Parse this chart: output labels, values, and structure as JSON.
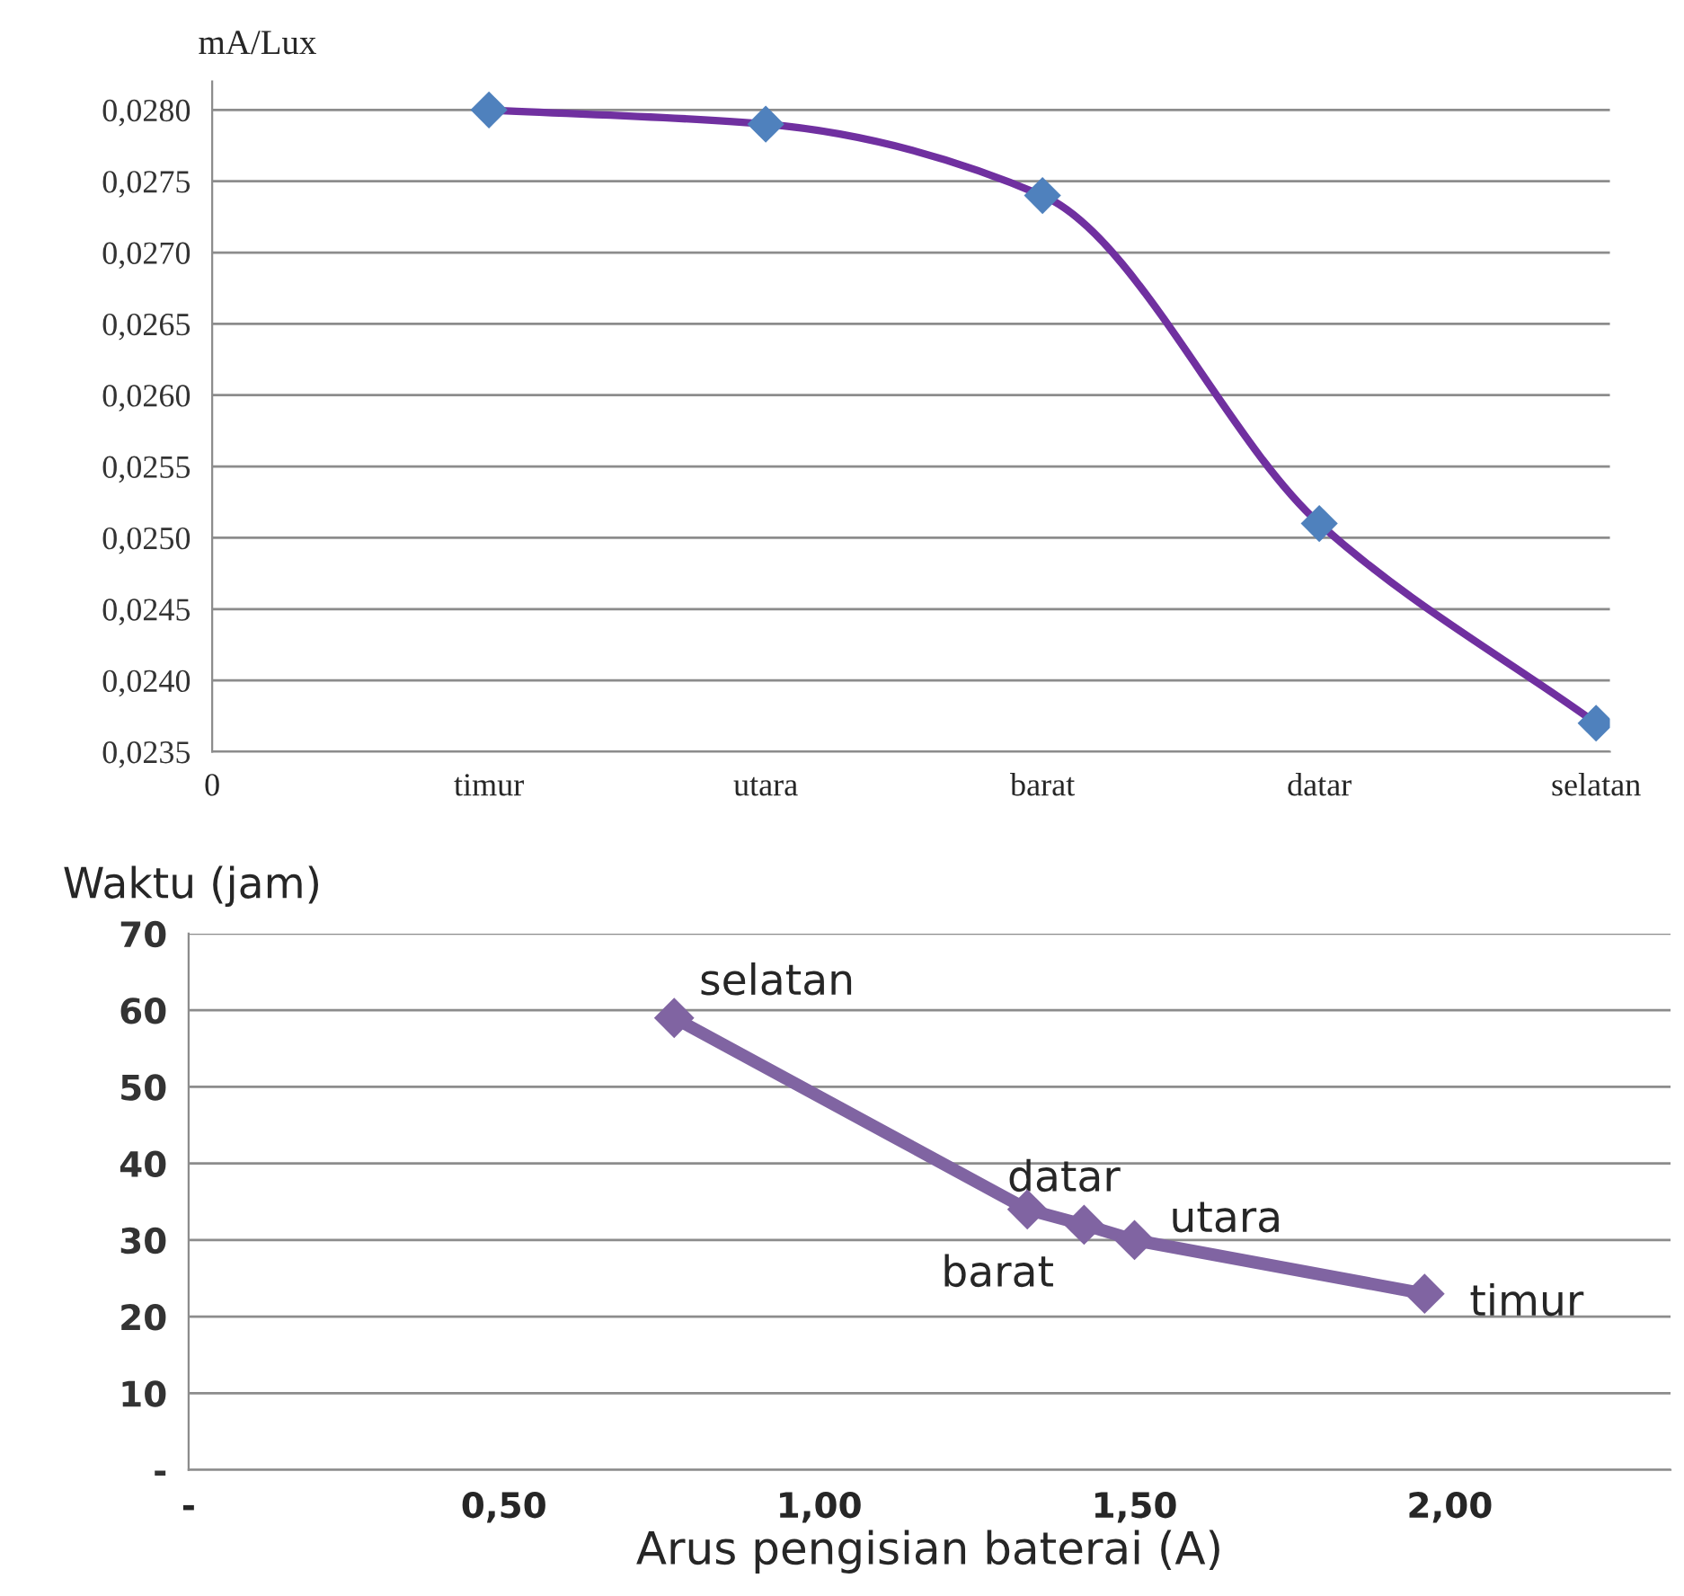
{
  "chart_data": [
    {
      "type": "line",
      "ylabel": "mA/Lux",
      "categories": [
        "0",
        "timur",
        "utara",
        "barat",
        "datar",
        "selatan"
      ],
      "ylim": [
        0.0235,
        0.0282
      ],
      "yticks": [
        {
          "value": 0.0235,
          "label": "0,0235"
        },
        {
          "value": 0.024,
          "label": "0,0240"
        },
        {
          "value": 0.0245,
          "label": "0,0245"
        },
        {
          "value": 0.025,
          "label": "0,0250"
        },
        {
          "value": 0.0255,
          "label": "0,0255"
        },
        {
          "value": 0.026,
          "label": "0,0260"
        },
        {
          "value": 0.0265,
          "label": "0,0265"
        },
        {
          "value": 0.027,
          "label": "0,0270"
        },
        {
          "value": 0.0275,
          "label": "0,0275"
        },
        {
          "value": 0.028,
          "label": "0,0280"
        }
      ],
      "series": [
        {
          "color": "#7030a0",
          "colors": [
            null,
            "#4f81bd",
            "#4f81bd",
            "#4f81bd",
            "#4f81bd",
            "#4f81bd"
          ],
          "values": [
            null,
            0.028,
            0.0279,
            0.0274,
            0.0251,
            0.0237
          ]
        }
      ],
      "marker": "diamond",
      "line_style": "solid",
      "grid": "y",
      "legend": false
    },
    {
      "type": "line",
      "xlabel": "Arus pengisian baterai (A)",
      "ylabel": "Waktu (jam)",
      "xlim": [
        0,
        2.35
      ],
      "xticks": [
        {
          "value": 0,
          "label": "-"
        },
        {
          "value": 0.5,
          "label": "0,50"
        },
        {
          "value": 1.0,
          "label": "1,00"
        },
        {
          "value": 1.5,
          "label": "1,50"
        },
        {
          "value": 2.0,
          "label": "2,00"
        }
      ],
      "ylim": [
        0,
        70
      ],
      "yticks": [
        {
          "value": 0,
          "label": "-"
        },
        10,
        20,
        30,
        40,
        50,
        60,
        70
      ],
      "series": [
        {
          "color": "#8064a2",
          "x": [
            0.77,
            1.33,
            1.42,
            1.5,
            1.96
          ],
          "values": [
            59,
            34,
            32,
            30,
            23
          ]
        }
      ],
      "annotations": [
        {
          "text": "selatan",
          "x": 0.77,
          "y": 59
        },
        {
          "text": "datar",
          "x": 1.33,
          "y": 34
        },
        {
          "text": "barat",
          "x": 1.42,
          "y": 32
        },
        {
          "text": "utara",
          "x": 1.5,
          "y": 30
        },
        {
          "text": "timur",
          "x": 1.96,
          "y": 23
        }
      ],
      "marker": "diamond",
      "line_style": "solid",
      "grid": "y",
      "legend": false
    }
  ]
}
